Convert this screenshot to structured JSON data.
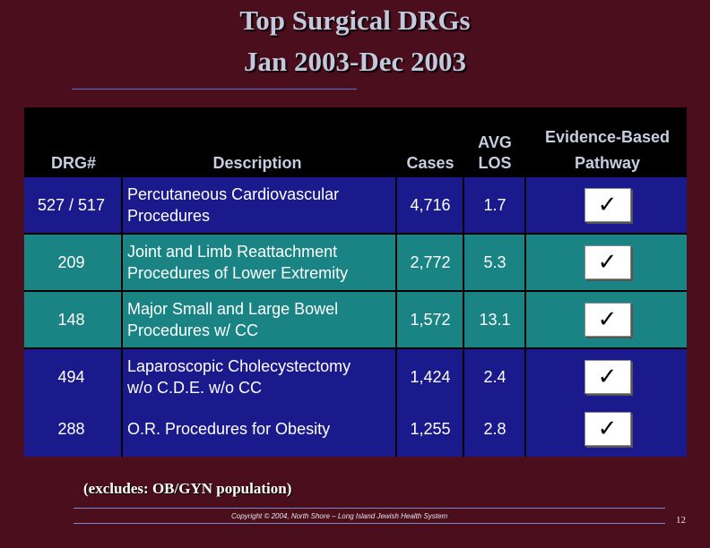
{
  "title": {
    "line1": "Top Surgical DRGs",
    "line2": "Jan 2003-Dec 2003"
  },
  "table": {
    "headers": {
      "drg": "DRG#",
      "description": "Description",
      "cases": "Cases",
      "avg_los_line1": "AVG",
      "avg_los_line2": "LOS",
      "evidence_line1": "Evidence-Based",
      "evidence_line2": "Pathway"
    },
    "rows": [
      {
        "drg": "527 / 517",
        "description_line1": "Percutaneous Cardiovascular",
        "description_line2": "Procedures",
        "cases": "4,716",
        "avg_los": "1.7",
        "pathway_mark": "✓"
      },
      {
        "drg": "209",
        "description_line1": "Joint and Limb Reattachment",
        "description_line2": "Procedures of Lower Extremity",
        "cases": "2,772",
        "avg_los": "5.3",
        "pathway_mark": "✓"
      },
      {
        "drg": "148",
        "description_line1": "Major Small and Large Bowel",
        "description_line2": "Procedures w/ CC",
        "cases": "1,572",
        "avg_los": "13.1",
        "pathway_mark": "✓"
      },
      {
        "drg": "494",
        "description_line1": "Laparoscopic Cholecystectomy",
        "description_line2": "w/o C.D.E. w/o CC",
        "cases": "1,424",
        "avg_los": "2.4",
        "pathway_mark": "✓"
      },
      {
        "drg": "288",
        "description_line1": "O.R. Procedures for Obesity",
        "description_line2": "",
        "cases": "1,255",
        "avg_los": "2.8",
        "pathway_mark": "✓"
      }
    ]
  },
  "footnote": "(excludes: OB/GYN population)",
  "footer": {
    "copyright": "Copyright © 2004, North Shore – Long Island Jewish Health System",
    "page_number": "12"
  },
  "colors": {
    "background": "#4a0e1c",
    "row_blue": "#1a1a8c",
    "row_teal": "#1a8484",
    "header_bg": "#000000",
    "title_text": "#c4c8dc"
  }
}
